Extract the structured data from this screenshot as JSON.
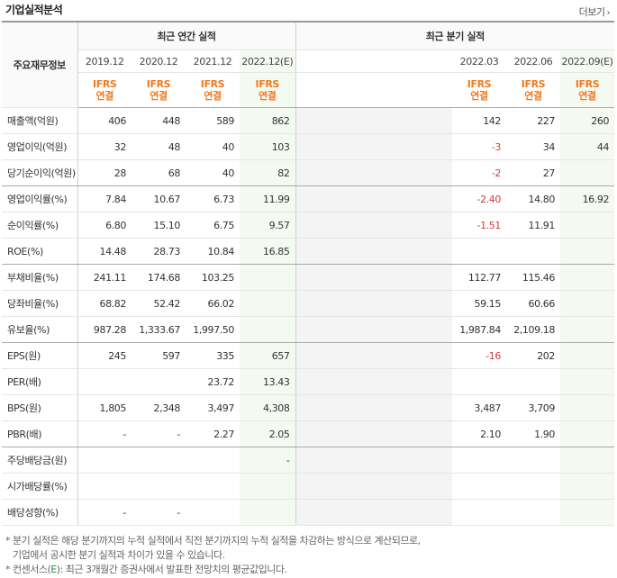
{
  "title": "기업실적분석",
  "more_label": "더보기",
  "header": {
    "row_label": "주요재무정보",
    "annual_group": "최근 연간 실적",
    "quarter_group": "최근 분기 실적",
    "annual_periods": [
      "2019.12",
      "2020.12",
      "2021.12",
      "2022.12(E)"
    ],
    "quarter_periods": [
      "2022.03",
      "2022.06",
      "2022.09(E)"
    ],
    "ifrs_label": "IFRS",
    "basis_label": "연결"
  },
  "rows": [
    {
      "label": "매출액(억원)",
      "annual": [
        "406",
        "448",
        "589",
        "862"
      ],
      "quarter": [
        "142",
        "227",
        "260"
      ]
    },
    {
      "label": "영업이익(억원)",
      "annual": [
        "32",
        "48",
        "40",
        "103"
      ],
      "quarter": [
        "-3",
        "34",
        "44"
      ]
    },
    {
      "label": "당기순이익(억원)",
      "annual": [
        "28",
        "68",
        "40",
        "82"
      ],
      "quarter": [
        "-2",
        "27",
        ""
      ]
    },
    {
      "label": "영업이익률(%)",
      "annual": [
        "7.84",
        "10.67",
        "6.73",
        "11.99"
      ],
      "quarter": [
        "-2.40",
        "14.80",
        "16.92"
      ]
    },
    {
      "label": "순이익률(%)",
      "annual": [
        "6.80",
        "15.10",
        "6.75",
        "9.57"
      ],
      "quarter": [
        "-1.51",
        "11.91",
        ""
      ]
    },
    {
      "label": "ROE(%)",
      "annual": [
        "14.48",
        "28.73",
        "10.84",
        "16.85"
      ],
      "quarter": [
        "",
        "",
        ""
      ]
    },
    {
      "label": "부채비율(%)",
      "annual": [
        "241.11",
        "174.68",
        "103.25",
        ""
      ],
      "quarter": [
        "112.77",
        "115.46",
        ""
      ]
    },
    {
      "label": "당좌비율(%)",
      "annual": [
        "68.82",
        "52.42",
        "66.02",
        ""
      ],
      "quarter": [
        "59.15",
        "60.66",
        ""
      ]
    },
    {
      "label": "유보율(%)",
      "annual": [
        "987.28",
        "1,333.67",
        "1,997.50",
        ""
      ],
      "quarter": [
        "1,987.84",
        "2,109.18",
        ""
      ]
    },
    {
      "label": "EPS(원)",
      "annual": [
        "245",
        "597",
        "335",
        "657"
      ],
      "quarter": [
        "-16",
        "202",
        ""
      ]
    },
    {
      "label": "PER(배)",
      "annual": [
        "",
        "",
        "23.72",
        "13.43"
      ],
      "quarter": [
        "",
        "",
        ""
      ]
    },
    {
      "label": "BPS(원)",
      "annual": [
        "1,805",
        "2,348",
        "3,497",
        "4,308"
      ],
      "quarter": [
        "3,487",
        "3,709",
        ""
      ]
    },
    {
      "label": "PBR(배)",
      "annual": [
        "-",
        "-",
        "2.27",
        "2.05"
      ],
      "quarter": [
        "2.10",
        "1.90",
        ""
      ]
    },
    {
      "label": "주당배당금(원)",
      "annual": [
        "",
        "",
        "",
        "-"
      ],
      "quarter": [
        "",
        "",
        ""
      ]
    },
    {
      "label": "시가배당률(%)",
      "annual": [
        "",
        "",
        "",
        ""
      ],
      "quarter": [
        "",
        "",
        ""
      ]
    },
    {
      "label": "배당성향(%)",
      "annual": [
        "-",
        "-",
        "",
        ""
      ],
      "quarter": [
        "",
        "",
        ""
      ]
    }
  ],
  "notes": {
    "line1": "* 분기 실적은 해당 분기까지의 누적 실적에서 직전 분기까지의 누적 실적을 차감하는 방식으로 계산되므로,",
    "line2": "기업에서 공시한 분기 실적과 차이가 있을 수 있습니다.",
    "line3_prefix": "* 컨센서스(",
    "line3_mark": "E",
    "line3_suffix": "): 최근 3개월간 증권사에서 발표한 전망치의 평균값입니다."
  },
  "colors": {
    "accent": "#f07a1e",
    "negative": "#d63a3a",
    "estimate_bg": "#f4f9f2",
    "estimate_mark": "#2e8b3a"
  }
}
